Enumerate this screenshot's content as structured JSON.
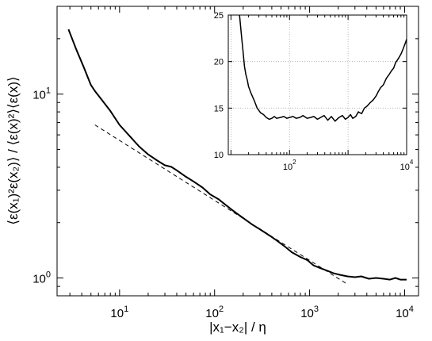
{
  "chart_data": [
    {
      "type": "line",
      "xlabel": "|x₁−x₂| / η",
      "ylabel": "⟨ε(x₁)²ε(x₂)⟩ / ⟨ε(x)²⟩⟨ε(x)⟩",
      "x_scale": "log",
      "y_scale": "log",
      "xlim": [
        2.2,
        14000
      ],
      "ylim": [
        0.8,
        30
      ],
      "x_ticks": [
        10,
        100,
        1000,
        10000
      ],
      "x_tick_labels": [
        {
          "base": "10",
          "exp": "1"
        },
        {
          "base": "10",
          "exp": "2"
        },
        {
          "base": "10",
          "exp": "3"
        },
        {
          "base": "10",
          "exp": "4"
        }
      ],
      "y_ticks": [
        1,
        10
      ],
      "y_tick_labels": [
        {
          "base": "10",
          "exp": "0"
        },
        {
          "base": "10",
          "exp": "1"
        }
      ],
      "grid": false,
      "series": [
        {
          "style": "solid",
          "color": "#000000",
          "x": [
            2.9,
            3.5,
            4.2,
            5.0,
            5.5,
            6.5,
            8,
            10,
            13,
            16,
            20,
            25,
            30,
            35,
            40,
            50,
            60,
            75,
            90,
            110,
            130,
            160,
            200,
            250,
            300,
            380,
            450,
            550,
            650,
            800,
            950,
            1100,
            1300,
            1500,
            1800,
            2100,
            2500,
            3000,
            3500,
            4200,
            5000,
            6000,
            7000,
            8000,
            9000,
            10500
          ],
          "y": [
            22.5,
            17.5,
            14.0,
            11.2,
            10.4,
            9.3,
            8.1,
            6.8,
            5.85,
            5.2,
            4.7,
            4.35,
            4.1,
            4.02,
            3.85,
            3.55,
            3.35,
            3.1,
            2.85,
            2.68,
            2.5,
            2.3,
            2.12,
            1.95,
            1.84,
            1.7,
            1.6,
            1.48,
            1.38,
            1.3,
            1.25,
            1.17,
            1.13,
            1.1,
            1.06,
            1.04,
            1.02,
            1.01,
            1.02,
            0.99,
            1.0,
            0.99,
            0.98,
            1.0,
            0.98,
            0.98
          ]
        },
        {
          "style": "dashed",
          "color": "#000000",
          "x": [
            5.5,
            2450
          ],
          "y": [
            6.8,
            0.93
          ]
        }
      ]
    },
    {
      "type": "line",
      "inset": true,
      "x_scale": "log",
      "y_scale": "linear",
      "xlim": [
        9,
        10000
      ],
      "ylim": [
        10,
        25
      ],
      "x_ticks": [
        100,
        10000
      ],
      "x_tick_labels": [
        {
          "base": "10",
          "exp": "2"
        },
        {
          "base": "10",
          "exp": "4"
        }
      ],
      "y_ticks": [
        10,
        15,
        20,
        25
      ],
      "y_tick_labels": [
        "10",
        "15",
        "20",
        "25"
      ],
      "grid": true,
      "series": [
        {
          "style": "solid",
          "color": "#000000",
          "x": [
            14,
            15,
            16,
            17,
            18,
            19,
            20,
            22,
            25,
            28,
            32,
            36,
            40,
            45,
            50,
            55,
            60,
            70,
            80,
            90,
            100,
            115,
            130,
            150,
            170,
            200,
            230,
            260,
            300,
            340,
            390,
            450,
            520,
            600,
            700,
            800,
            900,
            1000,
            1100,
            1200,
            1350,
            1500,
            1700,
            1900,
            2100,
            2400,
            2700,
            3000,
            3300,
            3600,
            4000,
            4500,
            5000,
            5500,
            6000,
            6500,
            7000,
            7500,
            8000,
            8500,
            9000,
            9500,
            10000
          ],
          "y": [
            25.0,
            23.0,
            21.2,
            19.5,
            18.6,
            18.0,
            17.3,
            16.6,
            15.8,
            15.0,
            14.5,
            14.3,
            14.0,
            13.8,
            13.9,
            14.1,
            13.9,
            14.0,
            14.1,
            13.9,
            14.0,
            14.1,
            13.9,
            14.0,
            14.2,
            13.9,
            14.0,
            14.1,
            13.8,
            14.0,
            14.2,
            13.7,
            14.1,
            13.6,
            14.0,
            14.2,
            13.8,
            14.0,
            14.3,
            13.9,
            14.1,
            14.6,
            14.4,
            15.0,
            15.2,
            15.6,
            15.9,
            16.3,
            16.8,
            17.2,
            17.5,
            18.2,
            18.6,
            19.0,
            19.3,
            19.9,
            20.2,
            20.5,
            20.8,
            21.2,
            21.6,
            22.0,
            22.4
          ]
        }
      ]
    }
  ]
}
